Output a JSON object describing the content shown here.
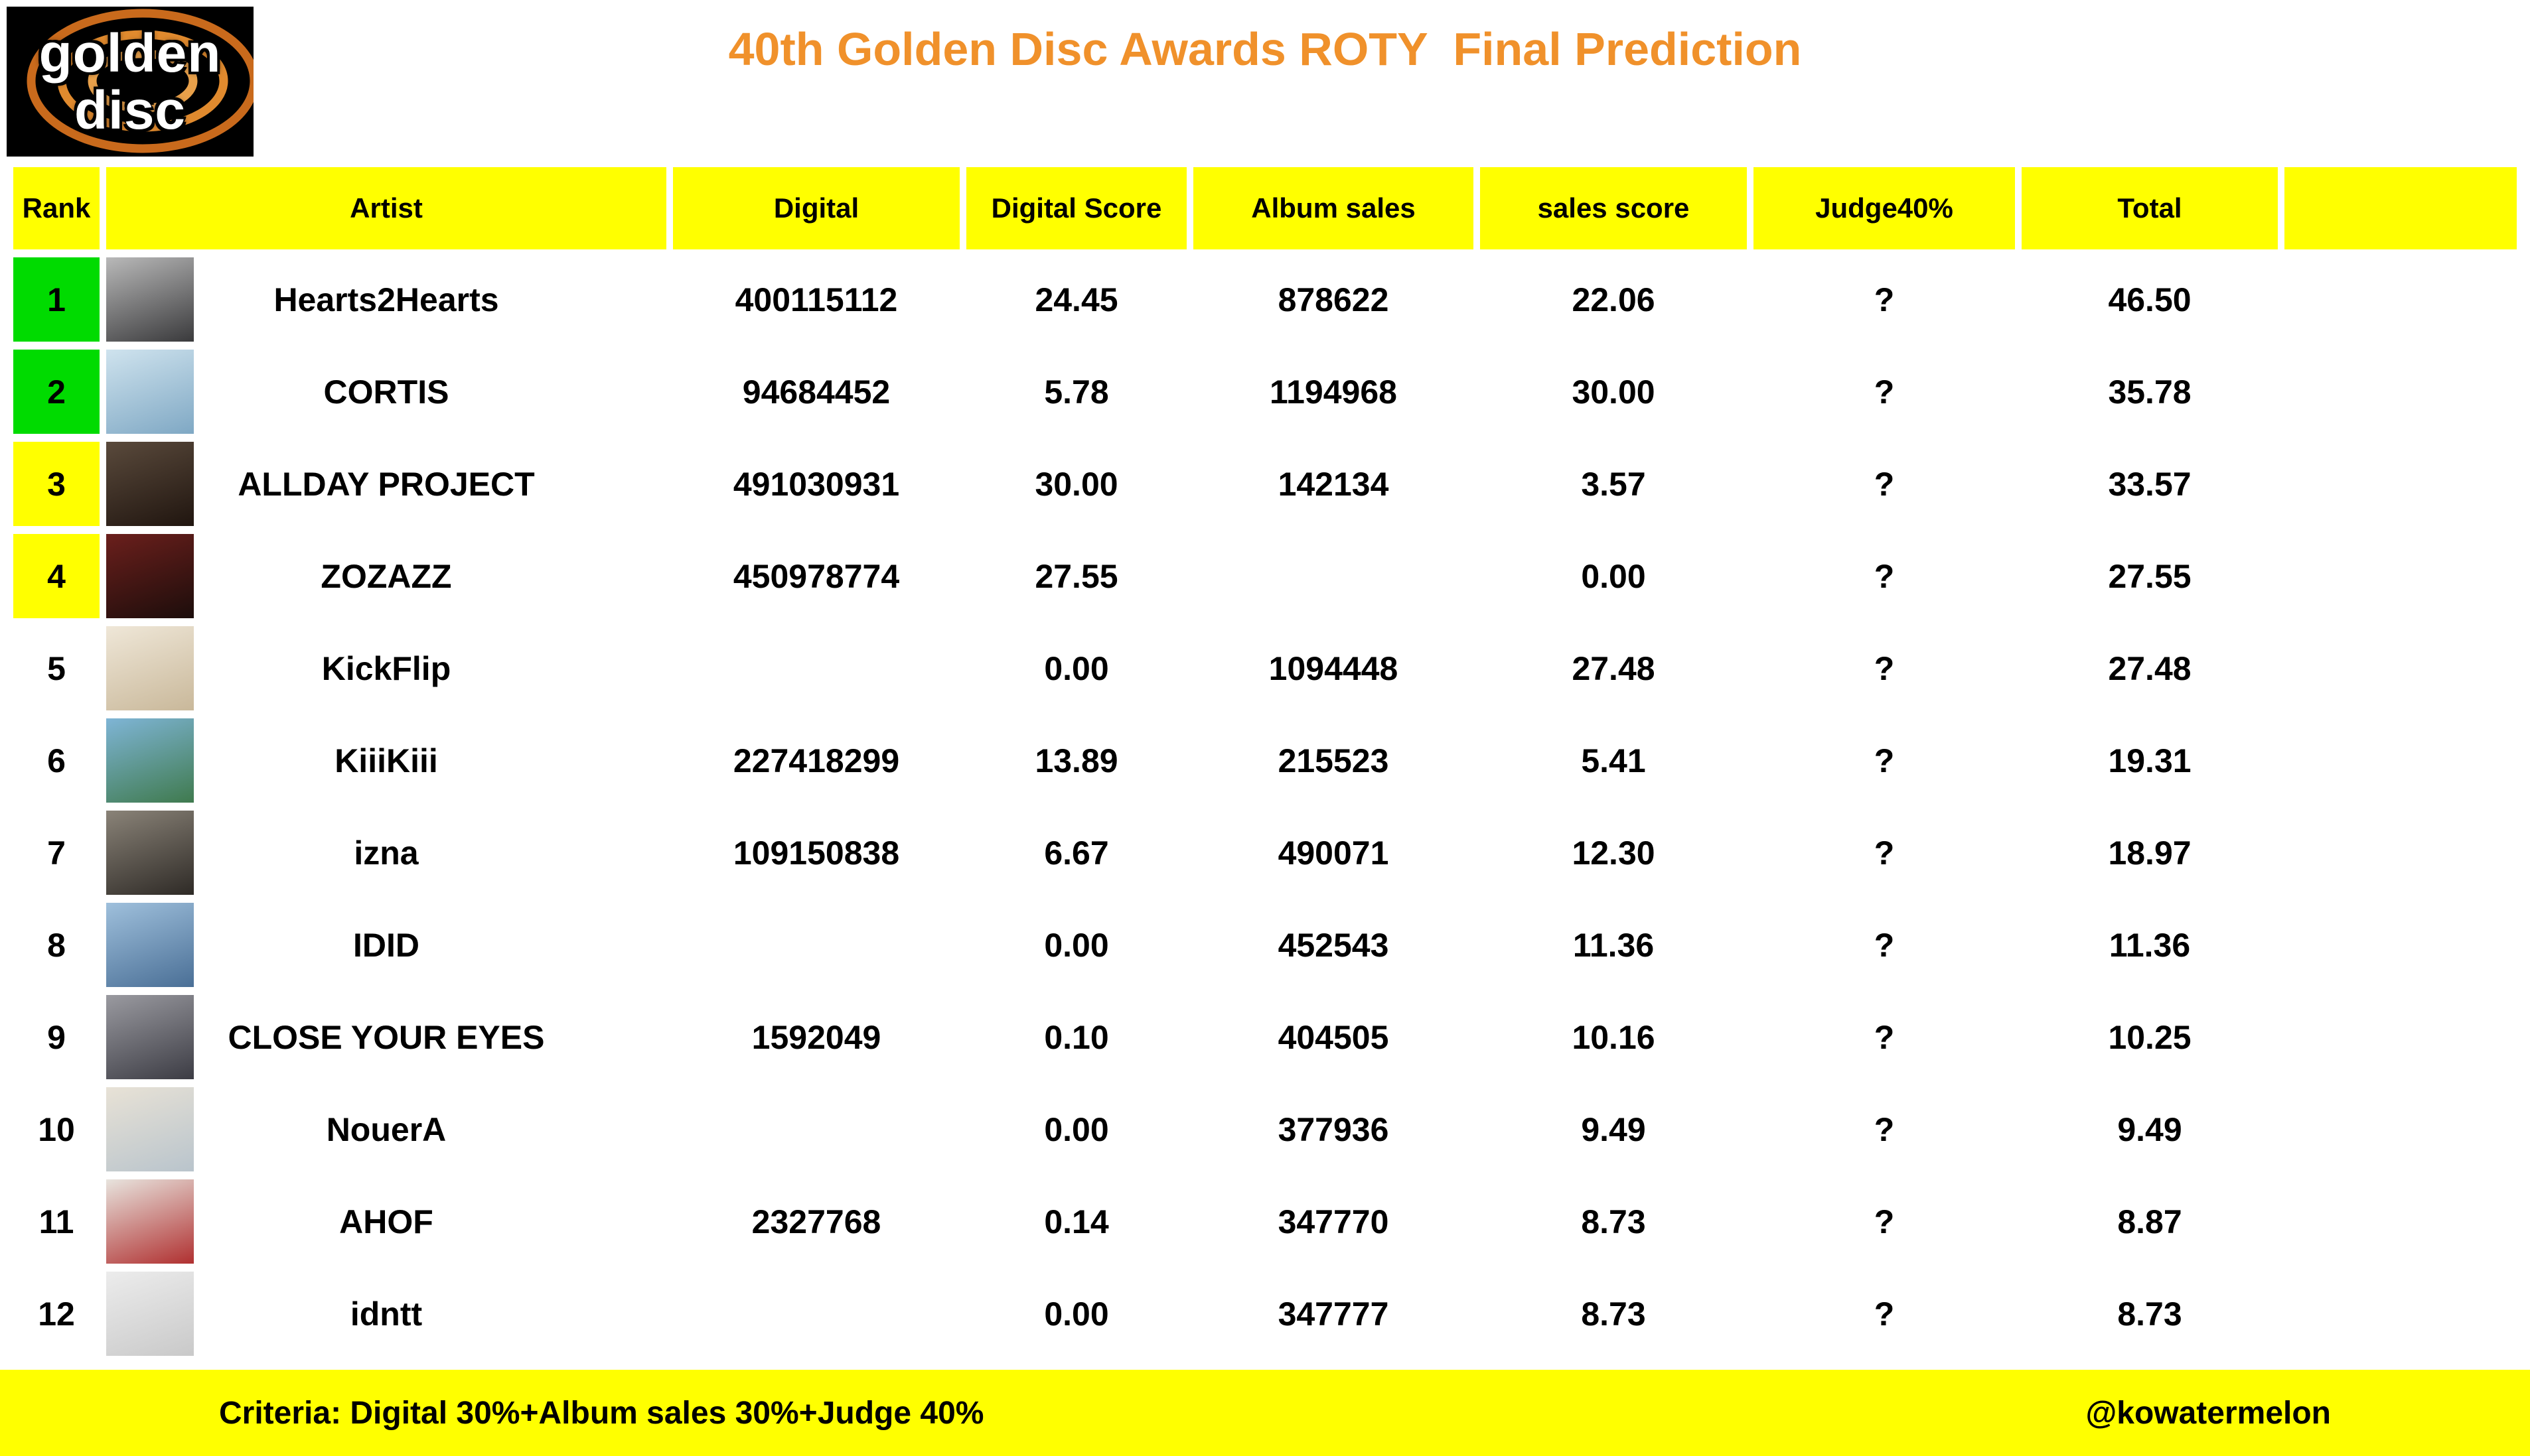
{
  "page": {
    "title": "40th Golden Disc Awards ROTY  Final Prediction"
  },
  "logo": {
    "line1": "golden",
    "line2": "disc"
  },
  "colors": {
    "accent_orange": "#F0912B",
    "header_yellow": "#FFFF00",
    "rank_green": "#00DB00",
    "rank_yellow": "#FFFF00",
    "logo_ring_orange": "#D4701E"
  },
  "table": {
    "headers": [
      "Rank",
      "Artist",
      "Digital",
      "Digital Score",
      "Album sales",
      "sales score",
      "Judge40%",
      "Total",
      ""
    ],
    "rows": [
      {
        "rank": "1",
        "artist": "Hearts2Hearts",
        "digital": "400115112",
        "digital_score": "24.45",
        "album_sales": "878622",
        "sales_score": "22.06",
        "judge": "?",
        "total": "46.50",
        "rank_bg": "#00DB00",
        "photo": [
          "#b9b9b9",
          "#3a3a3c"
        ]
      },
      {
        "rank": "2",
        "artist": "CORTIS",
        "digital": "94684452",
        "digital_score": "5.78",
        "album_sales": "1194968",
        "sales_score": "30.00",
        "judge": "?",
        "total": "35.78",
        "rank_bg": "#00DB00",
        "photo": [
          "#cfe3ee",
          "#7fa8c4"
        ]
      },
      {
        "rank": "3",
        "artist": "ALLDAY PROJECT",
        "digital": "491030931",
        "digital_score": "30.00",
        "album_sales": "142134",
        "sales_score": "3.57",
        "judge": "?",
        "total": "33.57",
        "rank_bg": "#FFFF00",
        "photo": [
          "#5a4a3c",
          "#20150f"
        ]
      },
      {
        "rank": "4",
        "artist": "ZOZAZZ",
        "digital": "450978774",
        "digital_score": "27.55",
        "album_sales": "",
        "sales_score": "0.00",
        "judge": "?",
        "total": "27.55",
        "rank_bg": "#FFFF00",
        "photo": [
          "#6b1f1c",
          "#1c0d0b"
        ]
      },
      {
        "rank": "5",
        "artist": "KickFlip",
        "digital": "",
        "digital_score": "0.00",
        "album_sales": "1094448",
        "sales_score": "27.48",
        "judge": "?",
        "total": "27.48",
        "rank_bg": "",
        "photo": [
          "#efe7d8",
          "#c9b89a"
        ]
      },
      {
        "rank": "6",
        "artist": "KiiiKiii",
        "digital": "227418299",
        "digital_score": "13.89",
        "album_sales": "215523",
        "sales_score": "5.41",
        "judge": "?",
        "total": "19.31",
        "rank_bg": "",
        "photo": [
          "#7fb5d6",
          "#3f7a4e"
        ]
      },
      {
        "rank": "7",
        "artist": "izna",
        "digital": "109150838",
        "digital_score": "6.67",
        "album_sales": "490071",
        "sales_score": "12.30",
        "judge": "?",
        "total": "18.97",
        "rank_bg": "",
        "photo": [
          "#8a8378",
          "#2e2a26"
        ]
      },
      {
        "rank": "8",
        "artist": "IDID",
        "digital": "",
        "digital_score": "0.00",
        "album_sales": "452543",
        "sales_score": "11.36",
        "judge": "?",
        "total": "11.36",
        "rank_bg": "",
        "photo": [
          "#9fc0dc",
          "#4a6f96"
        ]
      },
      {
        "rank": "9",
        "artist": "CLOSE YOUR EYES",
        "digital": "1592049",
        "digital_score": "0.10",
        "album_sales": "404505",
        "sales_score": "10.16",
        "judge": "?",
        "total": "10.25",
        "rank_bg": "",
        "photo": [
          "#9a9aa0",
          "#3c3c44"
        ]
      },
      {
        "rank": "10",
        "artist": "NouerA",
        "digital": "",
        "digital_score": "0.00",
        "album_sales": "377936",
        "sales_score": "9.49",
        "judge": "?",
        "total": "9.49",
        "rank_bg": "",
        "photo": [
          "#e8e2d6",
          "#b9c4cc"
        ]
      },
      {
        "rank": "11",
        "artist": "AHOF",
        "digital": "2327768",
        "digital_score": "0.14",
        "album_sales": "347770",
        "sales_score": "8.73",
        "judge": "?",
        "total": "8.87",
        "rank_bg": "",
        "photo": [
          "#e8e4de",
          "#b03030"
        ]
      },
      {
        "rank": "12",
        "artist": "idntt",
        "digital": "",
        "digital_score": "0.00",
        "album_sales": "347777",
        "sales_score": "8.73",
        "judge": "?",
        "total": "8.73",
        "rank_bg": "",
        "photo": [
          "#ececec",
          "#c9c9c9"
        ]
      }
    ]
  },
  "footer": {
    "criteria": "Criteria: Digital 30%+Album sales 30%+Judge 40%",
    "credit": "@kowatermelon"
  },
  "chart_data": {
    "type": "table",
    "title": "40th Golden Disc Awards ROTY  Final Prediction",
    "columns": [
      "Rank",
      "Artist",
      "Digital",
      "Digital Score",
      "Album sales",
      "sales score",
      "Judge40%",
      "Total"
    ],
    "rows": [
      [
        1,
        "Hearts2Hearts",
        400115112,
        24.45,
        878622,
        22.06,
        "?",
        46.5
      ],
      [
        2,
        "CORTIS",
        94684452,
        5.78,
        1194968,
        30.0,
        "?",
        35.78
      ],
      [
        3,
        "ALLDAY PROJECT",
        491030931,
        30.0,
        142134,
        3.57,
        "?",
        33.57
      ],
      [
        4,
        "ZOZAZZ",
        450978774,
        27.55,
        null,
        0.0,
        "?",
        27.55
      ],
      [
        5,
        "KickFlip",
        null,
        0.0,
        1094448,
        27.48,
        "?",
        27.48
      ],
      [
        6,
        "KiiiKiii",
        227418299,
        13.89,
        215523,
        5.41,
        "?",
        19.31
      ],
      [
        7,
        "izna",
        109150838,
        6.67,
        490071,
        12.3,
        "?",
        18.97
      ],
      [
        8,
        "IDID",
        null,
        0.0,
        452543,
        11.36,
        "?",
        11.36
      ],
      [
        9,
        "CLOSE YOUR EYES",
        1592049,
        0.1,
        404505,
        10.16,
        "?",
        10.25
      ],
      [
        10,
        "NouerA",
        null,
        0.0,
        377936,
        9.49,
        "?",
        9.49
      ],
      [
        11,
        "AHOF",
        2327768,
        0.14,
        347770,
        8.73,
        "?",
        8.87
      ],
      [
        12,
        "idntt",
        null,
        0.0,
        347777,
        8.73,
        "?",
        8.73
      ]
    ],
    "note": "Criteria: Digital 30%+Album sales 30%+Judge 40%",
    "highlight": {
      "green_ranks": [
        1,
        2
      ],
      "yellow_ranks": [
        3,
        4
      ]
    }
  }
}
